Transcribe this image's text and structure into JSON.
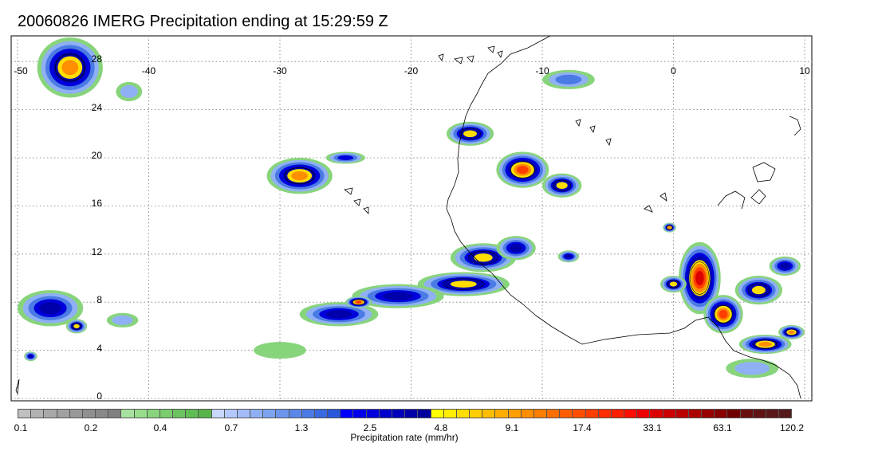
{
  "title": "20060826 IMERG Precipitation ending at 15:29:59 Z",
  "map": {
    "lon_range": [
      -50,
      10
    ],
    "lat_range": [
      -1,
      30
    ],
    "lon_ticks": [
      "-50",
      "-40",
      "-30",
      "-20",
      "-10",
      "0",
      "10"
    ],
    "lat_ticks": [
      "28",
      "24",
      "20",
      "16",
      "12",
      "8",
      "4",
      "0"
    ],
    "grid": "dotted",
    "coastlines": true
  },
  "precip_cells": [
    {
      "lon": -46.0,
      "lat": 27.5,
      "rx": 2.5,
      "ry": 2.5,
      "peak": 9.1
    },
    {
      "lon": -41.5,
      "lat": 25.5,
      "rx": 1.0,
      "ry": 0.8,
      "peak": 0.4
    },
    {
      "lon": -28.5,
      "lat": 18.5,
      "rx": 2.5,
      "ry": 1.5,
      "peak": 9.1
    },
    {
      "lon": -25.0,
      "lat": 20.0,
      "rx": 1.5,
      "ry": 0.5,
      "peak": 1.3
    },
    {
      "lon": -15.5,
      "lat": 22.0,
      "rx": 1.8,
      "ry": 1.0,
      "peak": 4.8
    },
    {
      "lon": -11.5,
      "lat": 19.0,
      "rx": 2.0,
      "ry": 1.5,
      "peak": 17.4
    },
    {
      "lon": -8.5,
      "lat": 17.7,
      "rx": 1.5,
      "ry": 1.0,
      "peak": 4.8
    },
    {
      "lon": -8.0,
      "lat": 26.5,
      "rx": 2.0,
      "ry": 0.8,
      "peak": 0.7
    },
    {
      "lon": -14.5,
      "lat": 11.7,
      "rx": 2.5,
      "ry": 1.2,
      "peak": 4.8
    },
    {
      "lon": -12.0,
      "lat": 12.5,
      "rx": 1.5,
      "ry": 1.0,
      "peak": 2.5
    },
    {
      "lon": -8.0,
      "lat": 11.8,
      "rx": 0.8,
      "ry": 0.5,
      "peak": 2.5
    },
    {
      "lon": -16.0,
      "lat": 9.5,
      "rx": 3.5,
      "ry": 1.0,
      "peak": 4.8
    },
    {
      "lon": -21.0,
      "lat": 8.5,
      "rx": 3.5,
      "ry": 1.0,
      "peak": 2.5
    },
    {
      "lon": -25.5,
      "lat": 7.0,
      "rx": 3.0,
      "ry": 1.0,
      "peak": 2.5
    },
    {
      "lon": -24.0,
      "lat": 8.0,
      "rx": 1.0,
      "ry": 0.5,
      "peak": 17.4
    },
    {
      "lon": -30.0,
      "lat": 4.0,
      "rx": 2.0,
      "ry": 0.7,
      "peak": 0.2
    },
    {
      "lon": -47.5,
      "lat": 7.5,
      "rx": 2.5,
      "ry": 1.5,
      "peak": 2.5
    },
    {
      "lon": -45.5,
      "lat": 6.0,
      "rx": 0.8,
      "ry": 0.6,
      "peak": 4.8
    },
    {
      "lon": -49.0,
      "lat": 3.5,
      "rx": 0.5,
      "ry": 0.4,
      "peak": 2.5
    },
    {
      "lon": -42.0,
      "lat": 6.5,
      "rx": 1.2,
      "ry": 0.6,
      "peak": 0.4
    },
    {
      "lon": 2.0,
      "lat": 10.0,
      "rx": 1.6,
      "ry": 3.0,
      "peak": 33.1
    },
    {
      "lon": 3.8,
      "lat": 7.0,
      "rx": 1.5,
      "ry": 1.6,
      "peak": 17.4
    },
    {
      "lon": 6.5,
      "lat": 9.0,
      "rx": 1.8,
      "ry": 1.2,
      "peak": 4.8
    },
    {
      "lon": 7.0,
      "lat": 4.5,
      "rx": 2.0,
      "ry": 0.8,
      "peak": 9.1
    },
    {
      "lon": 9.0,
      "lat": 5.5,
      "rx": 1.0,
      "ry": 0.6,
      "peak": 9.1
    },
    {
      "lon": 8.5,
      "lat": 11.0,
      "rx": 1.2,
      "ry": 0.8,
      "peak": 2.5
    },
    {
      "lon": 6.0,
      "lat": 2.5,
      "rx": 2.0,
      "ry": 0.8,
      "peak": 0.4
    },
    {
      "lon": -0.3,
      "lat": 14.2,
      "rx": 0.5,
      "ry": 0.4,
      "peak": 9.1
    },
    {
      "lon": 0.0,
      "lat": 9.5,
      "rx": 1.0,
      "ry": 0.7,
      "peak": 4.8
    }
  ],
  "colorbar": {
    "colors": [
      "#c0c0c0",
      "#b2b2b2",
      "#a8a8a8",
      "#a0a0a0",
      "#989898",
      "#909090",
      "#888888",
      "#808080",
      "#a8e2a0",
      "#98dc8c",
      "#88d47c",
      "#7acc6e",
      "#6cc460",
      "#60bc54",
      "#56b44a",
      "#c8d8ff",
      "#b4caff",
      "#a2bcfa",
      "#90b0f5",
      "#7ea4f0",
      "#6c96ec",
      "#5a88e8",
      "#4a7ae4",
      "#3a6ae0",
      "#2a58dc",
      "#0000ff",
      "#0000ee",
      "#0000dd",
      "#0000cc",
      "#0000bb",
      "#0000aa",
      "#00009a",
      "#ffff00",
      "#ffee00",
      "#ffde00",
      "#ffce00",
      "#ffbe00",
      "#ffae00",
      "#ff9e00",
      "#ff8e00",
      "#ff7e00",
      "#ff6e00",
      "#ff5e00",
      "#ff4e00",
      "#ff3e00",
      "#ff2e00",
      "#ff1e00",
      "#ff0e00",
      "#ee0000",
      "#dd0000",
      "#cc0000",
      "#bb0000",
      "#aa0000",
      "#990000",
      "#880000",
      "#700000",
      "#681010",
      "#601414",
      "#5a1818",
      "#541a1a"
    ],
    "tick_labels": [
      "0.1",
      "0.2",
      "0.4",
      "0.7",
      "1.3",
      "2.5",
      "4.8",
      "9.1",
      "17.4",
      "33.1",
      "63.1",
      "120.2"
    ],
    "units_label": "Precipitation rate (mm/hr)"
  }
}
